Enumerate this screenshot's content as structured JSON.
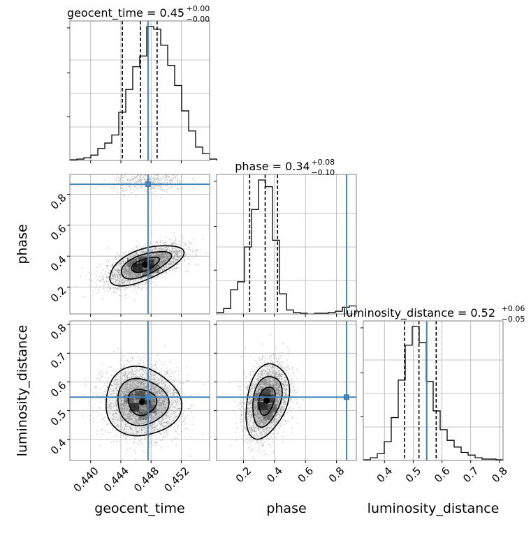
{
  "chart_data": {
    "type": "corner",
    "parameters": [
      "geocent_time",
      "phase",
      "luminosity_distance"
    ],
    "ranges": {
      "geocent_time": [
        0.43725,
        0.45575
      ],
      "phase": [
        0.0265,
        0.9285
      ],
      "luminosity_distance": [
        0.3265,
        0.8125
      ]
    },
    "truth": {
      "geocent_time": 0.4476,
      "phase": 0.865,
      "luminosity_distance": 0.547
    },
    "colors": {
      "truth": "#4682b4",
      "hist": "#000000",
      "grid": "#b0b0b0",
      "samples": "#9a9a9a"
    },
    "grid": true,
    "titles": [
      {
        "param": "geocent_time",
        "label": "geocent_time = 0.45",
        "sup": "+0.00",
        "sub": "−0.00"
      },
      {
        "param": "phase",
        "label": "phase = 0.34",
        "sup": "+0.08",
        "sub": "−0.10"
      },
      {
        "param": "luminosity_distance",
        "label": "luminosity_distance = 0.52",
        "sup": "+0.06",
        "sub": "−0.05"
      }
    ],
    "axis_labels": {
      "geocent_time": "geocent_time",
      "phase": "phase",
      "luminosity_distance": "luminosity_distance"
    },
    "ticks": {
      "geocent_time": [
        0.44,
        0.444,
        0.448,
        0.452
      ],
      "phase": [
        0.2,
        0.4,
        0.6,
        0.8
      ],
      "luminosity_distance": [
        0.4,
        0.5,
        0.6,
        0.7,
        0.8
      ]
    },
    "tick_labels": {
      "geocent_time": [
        "0.440",
        "0.444",
        "0.448",
        "0.452"
      ],
      "phase": [
        "0.2",
        "0.4",
        "0.6",
        "0.8"
      ],
      "luminosity_distance": [
        "0.4",
        "0.5",
        "0.6",
        "0.7",
        "0.8"
      ]
    },
    "quantiles": {
      "geocent_time": [
        0.4442,
        0.4466,
        0.4488
      ],
      "phase": [
        0.24,
        0.34,
        0.42
      ],
      "luminosity_distance": [
        0.47,
        0.52,
        0.58
      ]
    },
    "histograms": {
      "geocent_time": {
        "edges_start": 0.43725,
        "bin_width": 0.000925,
        "counts": [
          0.5,
          1,
          2,
          4,
          9,
          13,
          19,
          36,
          53,
          70,
          78,
          100,
          98,
          86,
          71,
          56,
          37,
          22,
          10,
          5,
          1
        ]
      },
      "phase": {
        "edges_start": 0.0265,
        "bin_width": 0.0451,
        "counts": [
          1,
          4,
          18,
          24,
          50,
          78,
          100,
          95,
          55,
          15,
          3,
          1,
          0.5,
          0,
          0.5,
          0.5,
          1,
          2,
          5,
          6
        ]
      },
      "luminosity_distance": {
        "edges_start": 0.3265,
        "bin_width": 0.0243,
        "counts": [
          0.5,
          2,
          5,
          14,
          32,
          60,
          86,
          100,
          88,
          59,
          37,
          23,
          15,
          10,
          6,
          4,
          2,
          1,
          1,
          0.5
        ]
      }
    },
    "correlations": {
      "phase_vs_geocent_time": {
        "main": {
          "mean": [
            0.4472,
            0.345
          ],
          "sd": [
            0.00245,
            0.065
          ],
          "rho": 0.6
        },
        "secondary": {
          "mean": [
            0.4478,
            0.88
          ],
          "sd": [
            0.0025,
            0.035
          ],
          "rho": 0.1
        }
      },
      "luminosity_distance_vs_geocent_time": {
        "mean": [
          0.4468,
          0.53
        ],
        "sd": [
          0.0025,
          0.06
        ],
        "rho": -0.05
      },
      "luminosity_distance_vs_phase": {
        "mean": [
          0.35,
          0.535
        ],
        "sd": [
          0.07,
          0.065
        ],
        "rho": 0.3
      }
    },
    "contour_levels": [
      0.39,
      0.86,
      1.0
    ]
  }
}
